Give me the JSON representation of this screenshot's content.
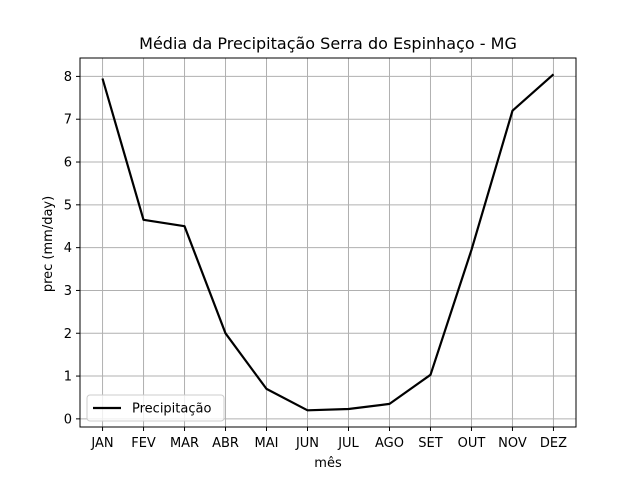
{
  "chart_data": {
    "type": "line",
    "title": "Média da Precipitação Serra do Espinhaço - MG",
    "xlabel": "mês",
    "ylabel": "prec (mm/day)",
    "categories": [
      "JAN",
      "FEV",
      "MAR",
      "ABR",
      "MAI",
      "JUN",
      "JUL",
      "AGO",
      "SET",
      "OUT",
      "NOV",
      "DEZ"
    ],
    "series": [
      {
        "name": "Precipitação",
        "color": "#000000",
        "values": [
          7.95,
          4.65,
          4.5,
          2.0,
          0.7,
          0.2,
          0.23,
          0.35,
          1.03,
          3.95,
          7.2,
          8.05
        ]
      }
    ],
    "ylim": [
      -0.19,
      8.43
    ],
    "yticks": [
      0,
      1,
      2,
      3,
      4,
      5,
      6,
      7,
      8
    ],
    "grid": true,
    "legend_position": "lower-left",
    "grid_color": "#b0b0b0"
  }
}
